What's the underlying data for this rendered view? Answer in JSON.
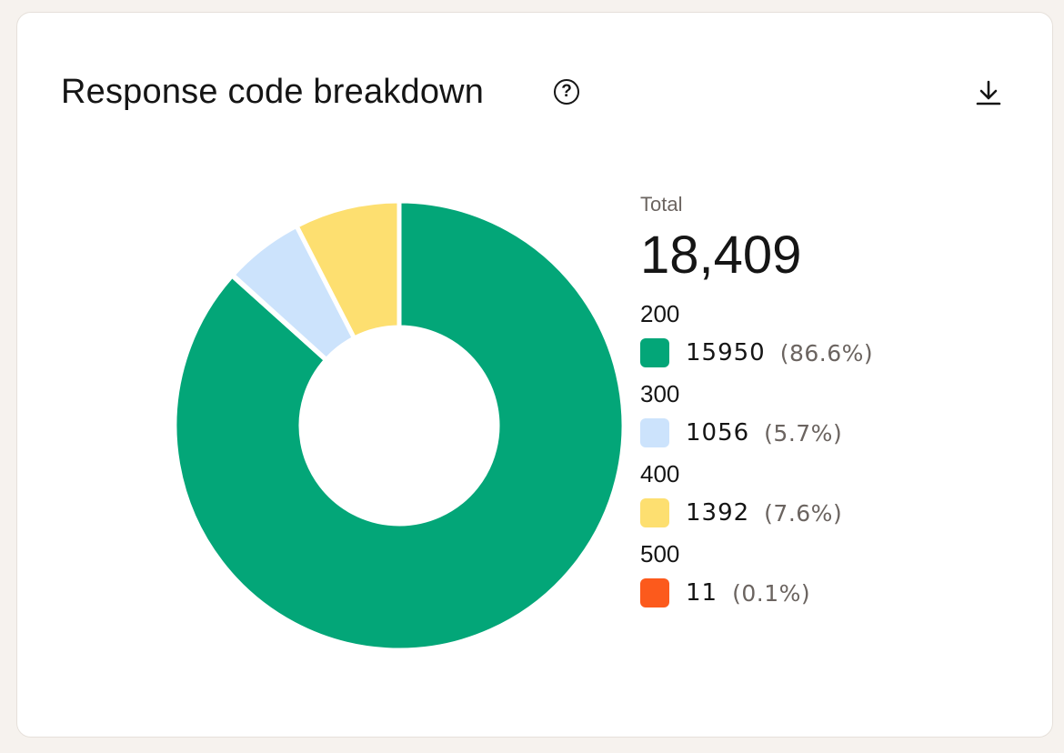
{
  "card": {
    "title": "Response code breakdown",
    "help_icon": "question-circle-icon",
    "download_icon": "download-icon"
  },
  "chart_data": {
    "type": "pie",
    "donut": true,
    "total_label": "Total",
    "total": "18,409",
    "categories": [
      "200",
      "300",
      "400",
      "500"
    ],
    "values": [
      15950,
      1056,
      1392,
      11
    ],
    "value_labels": [
      "15950",
      "1056",
      "1392",
      "11"
    ],
    "percent_labels": [
      "(86.6%)",
      "(5.7%)",
      "(7.6%)",
      "(0.1%)"
    ],
    "colors": [
      "#03a678",
      "#cce3fc",
      "#fddf70",
      "#fc5a1c"
    ],
    "slice_order_clockwise_from_top": [
      "200",
      "500",
      "300",
      "400"
    ],
    "legend_position": "right"
  }
}
